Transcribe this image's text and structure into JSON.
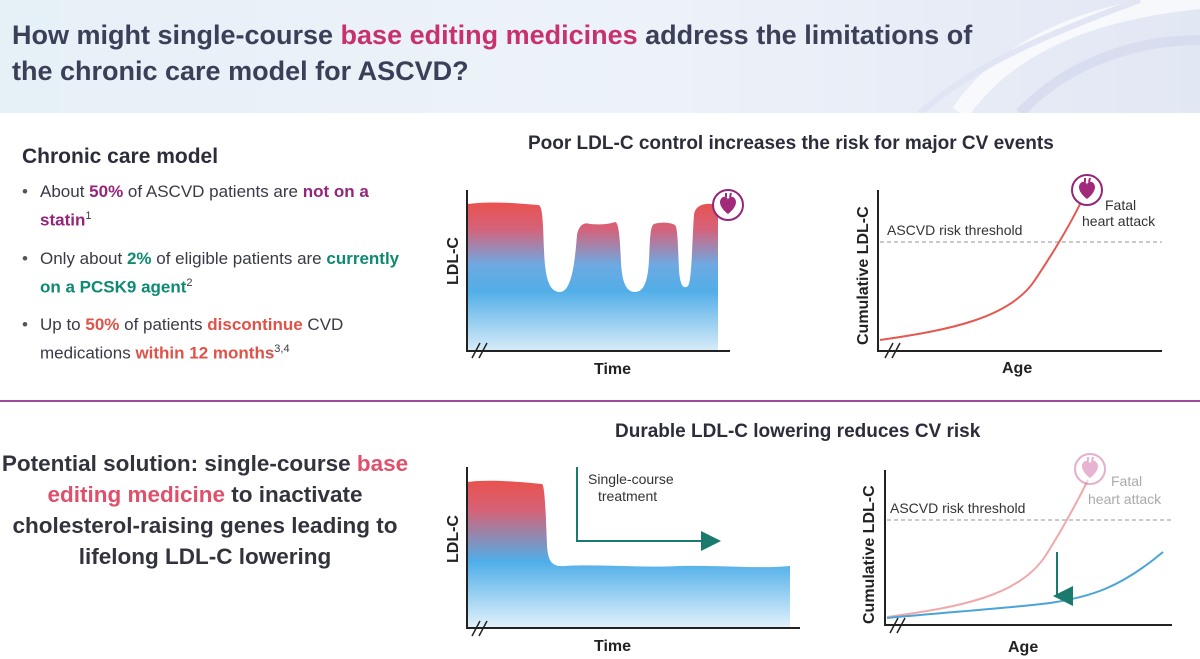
{
  "header": {
    "title_pre": "How might single-course ",
    "title_highlight": "base editing medicines",
    "title_post": " address the limitations of the chronic care model for ASCVD?"
  },
  "chronic_care": {
    "heading": "Chronic care model",
    "bullets": [
      {
        "t1": "About ",
        "h1": "50%",
        "t2": " of ASCVD patients are ",
        "h2": "not on a statin",
        "sup": "1"
      },
      {
        "t1": "Only about ",
        "h1": "2%",
        "t2": " of eligible patients are ",
        "h2": "currently on a PCSK9 agent",
        "sup": "2"
      },
      {
        "t1": "Up to ",
        "h1": "50%",
        "t2": " of patients ",
        "h2": "discontinue",
        "t3": " CVD medications ",
        "h3": "within 12 months",
        "sup": "3,4"
      }
    ]
  },
  "top_section": {
    "title": "Poor LDL-C control increases the risk for major CV events",
    "left_chart": {
      "ylabel": "LDL-C",
      "xlabel": "Time"
    },
    "right_chart": {
      "ylabel": "Cumulative LDL-C",
      "xlabel": "Age",
      "threshold_label": "ASCVD risk threshold",
      "event_label_1": "Fatal",
      "event_label_2": "heart attack"
    }
  },
  "bottom_section": {
    "title": "Durable LDL-C lowering reduces CV risk",
    "solution_pre": "Potential solution: single-course ",
    "solution_highlight": "base editing medicine",
    "solution_post": " to inactivate cholesterol-raising genes leading to lifelong LDL-C lowering",
    "left_chart": {
      "ylabel": "LDL-C",
      "xlabel": "Time",
      "treatment_label_1": "Single-course",
      "treatment_label_2": "treatment"
    },
    "right_chart": {
      "ylabel": "Cumulative LDL-C",
      "xlabel": "Age",
      "threshold_label": "ASCVD risk threshold",
      "event_label_1": "Fatal",
      "event_label_2": "heart attack"
    }
  },
  "colors": {
    "title": "#3b3f57",
    "highlight_pink": "#c8326c",
    "purple": "#93267a",
    "green": "#0e8a72",
    "red": "#e05147",
    "divider": "#9a4b9c",
    "curve_red": "#e4584f",
    "curve_blue": "#4aa3d9",
    "arrow_green": "#1a7a6e"
  },
  "icons": [
    "heart-icon"
  ]
}
